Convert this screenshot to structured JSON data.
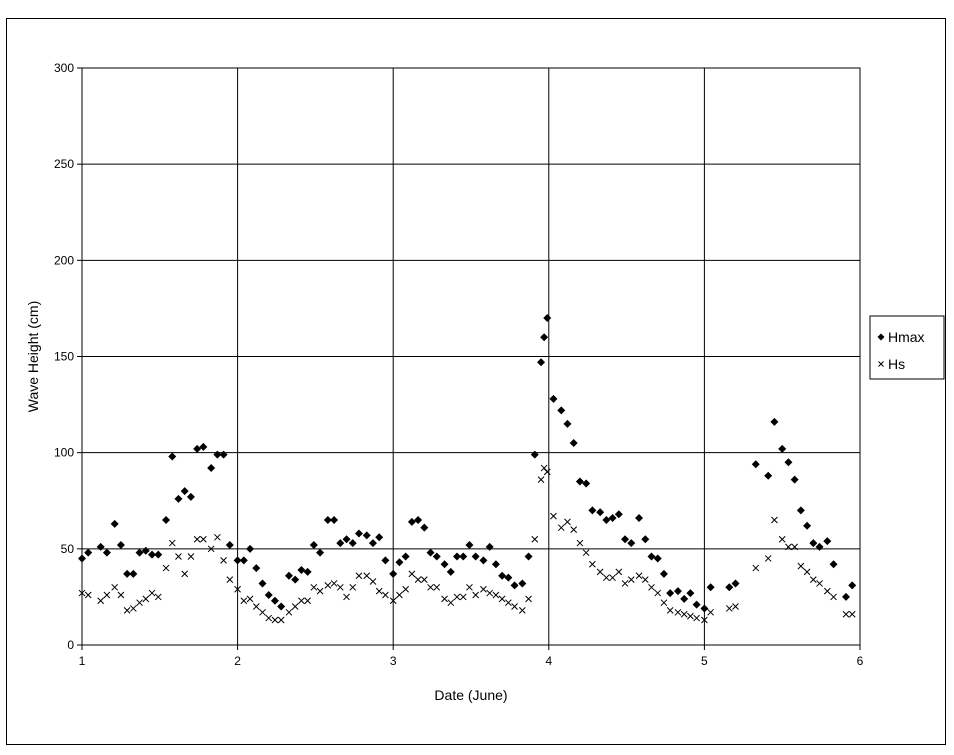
{
  "chart_data": {
    "type": "scatter",
    "title": "",
    "xlabel": "Date (June)",
    "ylabel": "Wave Height (cm)",
    "xlim": [
      1,
      6
    ],
    "ylim": [
      0,
      300
    ],
    "x_ticks": [
      "1",
      "2",
      "3",
      "4",
      "5",
      "6"
    ],
    "y_ticks": [
      "0",
      "50",
      "100",
      "150",
      "200",
      "250",
      "300"
    ],
    "grid": true,
    "legend_position": "right",
    "series": [
      {
        "name": "Hmax",
        "marker": "diamond",
        "x": [
          1.0,
          1.04,
          1.12,
          1.16,
          1.21,
          1.25,
          1.29,
          1.33,
          1.37,
          1.41,
          1.45,
          1.49,
          1.54,
          1.58,
          1.62,
          1.66,
          1.7,
          1.74,
          1.78,
          1.83,
          1.87,
          1.91,
          1.95,
          2.0,
          2.04,
          2.08,
          2.12,
          2.16,
          2.2,
          2.24,
          2.28,
          2.33,
          2.37,
          2.41,
          2.45,
          2.49,
          2.53,
          2.58,
          2.62,
          2.66,
          2.7,
          2.74,
          2.78,
          2.83,
          2.87,
          2.91,
          2.95,
          3.0,
          3.04,
          3.08,
          3.12,
          3.16,
          3.2,
          3.24,
          3.28,
          3.33,
          3.37,
          3.41,
          3.45,
          3.49,
          3.53,
          3.58,
          3.62,
          3.66,
          3.7,
          3.74,
          3.78,
          3.83,
          3.87,
          3.91,
          3.95,
          3.97,
          3.99,
          4.03,
          4.08,
          4.12,
          4.16,
          4.2,
          4.24,
          4.28,
          4.33,
          4.37,
          4.41,
          4.45,
          4.49,
          4.53,
          4.58,
          4.62,
          4.66,
          4.7,
          4.74,
          4.78,
          4.83,
          4.87,
          4.91,
          4.95,
          5.0,
          5.04,
          5.16,
          5.2,
          5.33,
          5.41,
          5.45,
          5.5,
          5.54,
          5.58,
          5.62,
          5.66,
          5.7,
          5.74,
          5.79,
          5.83,
          5.91,
          5.95
        ],
        "y": [
          45,
          48,
          51,
          48,
          63,
          52,
          37,
          37,
          48,
          49,
          47,
          47,
          65,
          98,
          76,
          80,
          77,
          102,
          103,
          92,
          99,
          99,
          52,
          44,
          44,
          50,
          40,
          32,
          26,
          23,
          20,
          36,
          34,
          39,
          38,
          52,
          48,
          65,
          65,
          53,
          55,
          53,
          58,
          57,
          53,
          56,
          44,
          37,
          43,
          46,
          64,
          65,
          61,
          48,
          46,
          42,
          38,
          46,
          46,
          52,
          46,
          44,
          51,
          42,
          36,
          35,
          31,
          32,
          46,
          99,
          147,
          160,
          170,
          128,
          122,
          115,
          105,
          85,
          84,
          70,
          69,
          65,
          66,
          68,
          55,
          53,
          66,
          55,
          46,
          45,
          37,
          27,
          28,
          24,
          27,
          21,
          19,
          30,
          30,
          32,
          94,
          88,
          116,
          102,
          95,
          86,
          70,
          62,
          53,
          51,
          54,
          42,
          25,
          31
        ]
      },
      {
        "name": "Hs",
        "marker": "x",
        "x": [
          1.0,
          1.04,
          1.12,
          1.16,
          1.21,
          1.25,
          1.29,
          1.33,
          1.37,
          1.41,
          1.45,
          1.49,
          1.54,
          1.58,
          1.62,
          1.66,
          1.7,
          1.74,
          1.78,
          1.83,
          1.87,
          1.91,
          1.95,
          2.0,
          2.04,
          2.08,
          2.12,
          2.16,
          2.2,
          2.24,
          2.28,
          2.33,
          2.37,
          2.41,
          2.45,
          2.49,
          2.53,
          2.58,
          2.62,
          2.66,
          2.7,
          2.74,
          2.78,
          2.83,
          2.87,
          2.91,
          2.95,
          3.0,
          3.04,
          3.08,
          3.12,
          3.16,
          3.2,
          3.24,
          3.28,
          3.33,
          3.37,
          3.41,
          3.45,
          3.49,
          3.53,
          3.58,
          3.62,
          3.66,
          3.7,
          3.74,
          3.78,
          3.83,
          3.87,
          3.91,
          3.95,
          3.97,
          3.99,
          4.03,
          4.08,
          4.12,
          4.16,
          4.2,
          4.24,
          4.28,
          4.33,
          4.37,
          4.41,
          4.45,
          4.49,
          4.53,
          4.58,
          4.62,
          4.66,
          4.7,
          4.74,
          4.78,
          4.83,
          4.87,
          4.91,
          4.95,
          5.0,
          5.04,
          5.16,
          5.2,
          5.33,
          5.41,
          5.45,
          5.5,
          5.54,
          5.58,
          5.62,
          5.66,
          5.7,
          5.74,
          5.79,
          5.83,
          5.91,
          5.95
        ],
        "y": [
          27,
          26,
          23,
          26,
          30,
          26,
          18,
          19,
          22,
          24,
          27,
          25,
          40,
          53,
          46,
          37,
          46,
          55,
          55,
          50,
          56,
          44,
          34,
          29,
          23,
          24,
          20,
          17,
          14,
          13,
          13,
          17,
          20,
          23,
          23,
          30,
          28,
          31,
          32,
          30,
          25,
          30,
          36,
          36,
          33,
          28,
          26,
          23,
          26,
          29,
          37,
          34,
          34,
          30,
          30,
          24,
          22,
          25,
          25,
          30,
          26,
          29,
          27,
          26,
          24,
          22,
          20,
          18,
          24,
          55,
          86,
          92,
          90,
          67,
          61,
          64,
          60,
          53,
          48,
          42,
          38,
          35,
          35,
          38,
          32,
          34,
          36,
          34,
          30,
          27,
          22,
          18,
          17,
          16,
          15,
          14,
          13,
          17,
          19,
          20,
          40,
          45,
          65,
          55,
          51,
          51,
          41,
          38,
          34,
          32,
          28,
          25,
          16,
          16
        ]
      }
    ]
  }
}
